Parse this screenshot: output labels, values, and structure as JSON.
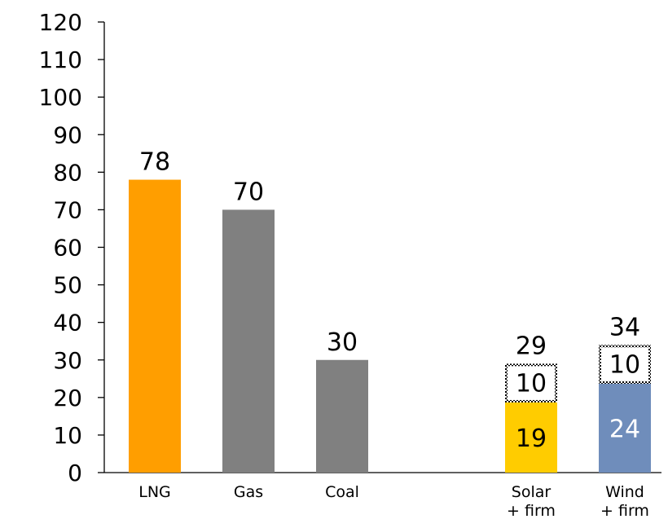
{
  "chart_data": {
    "type": "bar",
    "stacked": true,
    "title": "",
    "xlabel": "",
    "ylabel": "",
    "ylim": [
      0,
      120
    ],
    "yticks": [
      0,
      10,
      20,
      30,
      40,
      50,
      60,
      70,
      80,
      90,
      100,
      110,
      120
    ],
    "grid": false,
    "legend": "none",
    "categories": [
      {
        "lines": [
          "LNG"
        ]
      },
      {
        "lines": [
          "Gas"
        ]
      },
      {
        "lines": [
          "Coal"
        ]
      },
      {
        "lines": [
          "Solar",
          "+ firm"
        ]
      },
      {
        "lines": [
          "Wind",
          "+ firm"
        ]
      }
    ],
    "series": [
      {
        "values": [
          78,
          70,
          30,
          19,
          24
        ],
        "colors": [
          "#FF9E00",
          "#808080",
          "#808080",
          "#FFCC00",
          "#6F8DBB"
        ],
        "label_colors": [
          "#000000",
          "#000000",
          "#000000",
          "#000000",
          "#ffffff"
        ]
      },
      {
        "values": [
          null,
          null,
          null,
          10,
          10
        ],
        "style": "dotted-outline"
      }
    ],
    "totals": [
      78,
      70,
      30,
      29,
      34
    ]
  }
}
